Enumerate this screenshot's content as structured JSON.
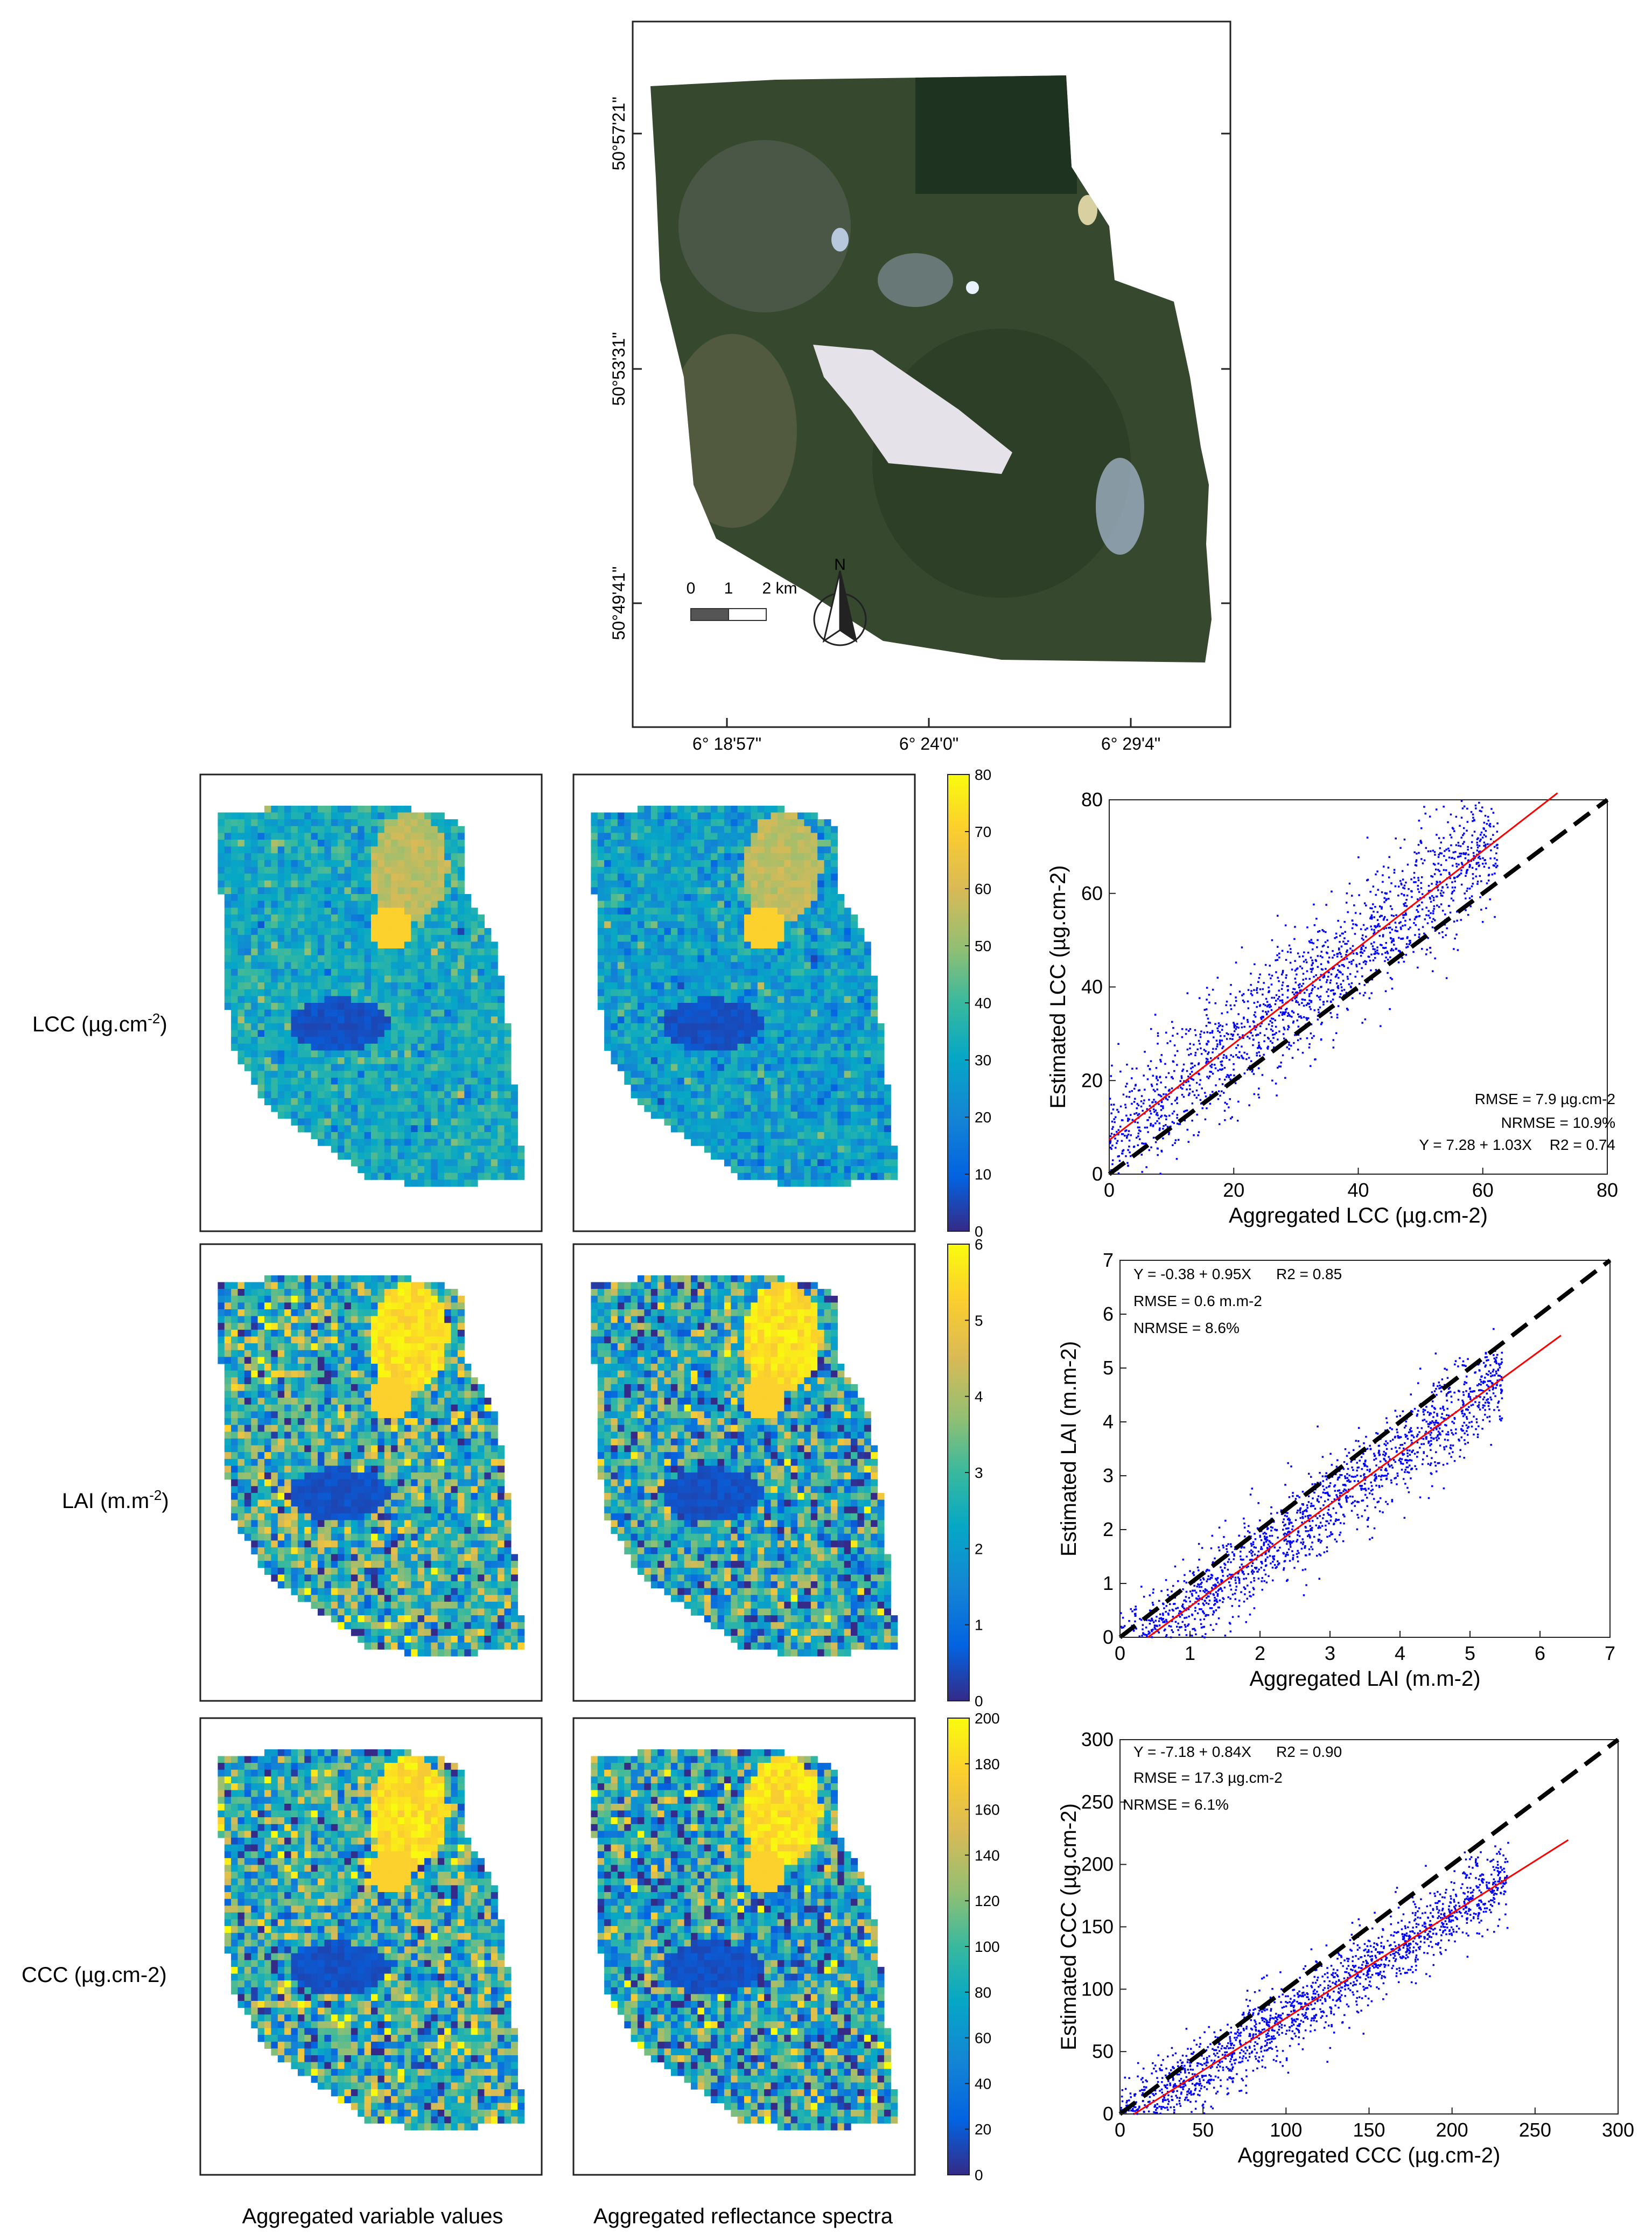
{
  "topmap": {
    "lat_ticks": [
      "50°57'21\"",
      "50°53'31\"",
      "50°49'41\""
    ],
    "lon_ticks": [
      "6° 18'57\"",
      "6° 24'0\"",
      "6° 29'4\""
    ],
    "scale_labels": [
      "0",
      "1",
      "2 km"
    ],
    "north_label": "N"
  },
  "rows": [
    {
      "label": "LCC (µg.cm",
      "sup": "-2",
      "close": ")"
    },
    {
      "label": "LAI (m.m",
      "sup": "-2",
      "close": ")"
    },
    {
      "label": "CCC (µg.cm-2)",
      "sup": "",
      "close": ""
    }
  ],
  "column_labels": [
    "Aggregated variable values",
    "Aggregated reflectance spectra"
  ],
  "colorbars": [
    {
      "ticks": [
        "0",
        "10",
        "20",
        "30",
        "40",
        "50",
        "60",
        "70",
        "80"
      ],
      "min": 0,
      "max": 80
    },
    {
      "ticks": [
        "0",
        "1",
        "2",
        "3",
        "4",
        "5",
        "6"
      ],
      "min": 0,
      "max": 6
    },
    {
      "ticks": [
        "0",
        "20",
        "40",
        "60",
        "80",
        "100",
        "120",
        "140",
        "160",
        "180",
        "200"
      ],
      "min": 0,
      "max": 200
    }
  ],
  "colors": {
    "points": "#0000ff",
    "fit_line": "#ff0000",
    "one_to_one": "#000000"
  },
  "chart_data": [
    {
      "type": "scatter",
      "xlabel": "Aggregated LCC (µg.cm-2)",
      "ylabel": "Estimated LCC (µg.cm-2)",
      "xlim": [
        0,
        80
      ],
      "ylim": [
        0,
        80
      ],
      "xticks": [
        0,
        20,
        40,
        60,
        80
      ],
      "yticks": [
        0,
        20,
        40,
        60,
        80
      ],
      "fit": {
        "intercept": 7.28,
        "slope": 1.03
      },
      "one_to_one": true,
      "annotations": [
        "RMSE = 7.9 µg.cm-2",
        "NRMSE = 10.9%",
        "Y = 7.28 + 1.03X",
        "R2 = 0.74"
      ]
    },
    {
      "type": "scatter",
      "xlabel": "Aggregated LAI (m.m-2)",
      "ylabel": "Estimated LAI (m.m-2)",
      "xlim": [
        0,
        7
      ],
      "ylim": [
        0,
        7
      ],
      "xticks": [
        0,
        1,
        2,
        3,
        4,
        5,
        6,
        7
      ],
      "yticks": [
        0,
        1,
        2,
        3,
        4,
        5,
        6,
        7
      ],
      "fit": {
        "intercept": -0.38,
        "slope": 0.95
      },
      "one_to_one": true,
      "annotations": [
        "Y = -0.38 + 0.95X",
        "R2 = 0.85",
        "RMSE = 0.6 m.m-2",
        "NRMSE = 8.6%"
      ]
    },
    {
      "type": "scatter",
      "xlabel": "Aggregated CCC (µg.cm-2)",
      "ylabel": "Estimated CCC (µg.cm-2)",
      "xlim": [
        0,
        300
      ],
      "ylim": [
        0,
        300
      ],
      "xticks": [
        0,
        50,
        100,
        150,
        200,
        250,
        300
      ],
      "yticks": [
        0,
        50,
        100,
        150,
        200,
        250,
        300
      ],
      "fit": {
        "intercept": -7.18,
        "slope": 0.84
      },
      "one_to_one": true,
      "annotations": [
        "Y = -7.18 + 0.84X",
        "R2 = 0.90",
        "RMSE = 17.3 µg.cm-2",
        "NRMSE = 6.1%"
      ]
    }
  ]
}
